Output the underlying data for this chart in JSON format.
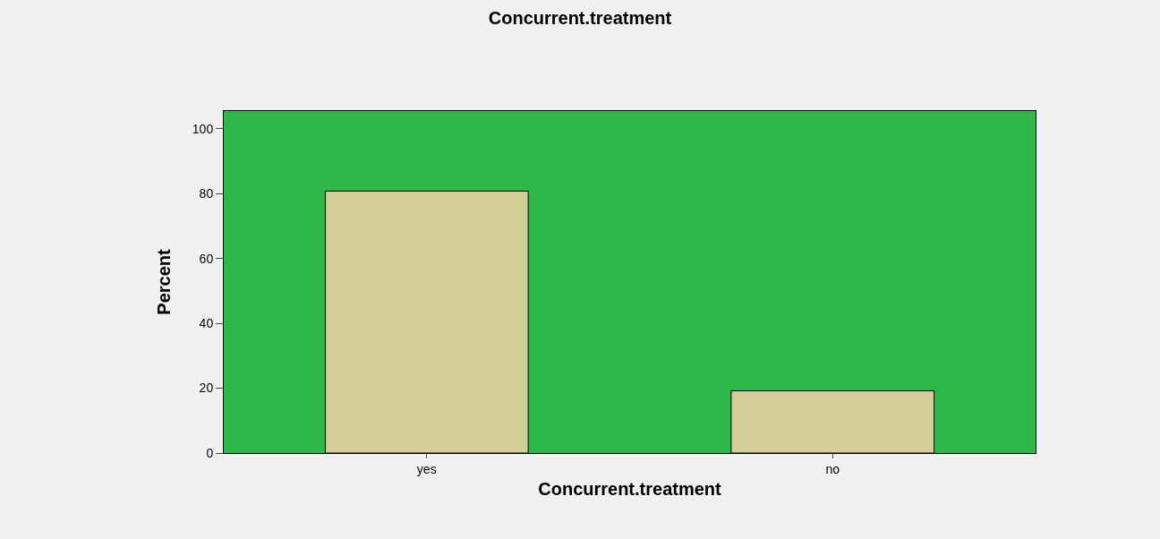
{
  "chart_data": {
    "type": "bar",
    "title": "Concurrent.treatment",
    "xlabel": "Concurrent.treatment",
    "ylabel": "Percent",
    "categories": [
      "yes",
      "no"
    ],
    "values": [
      80.8,
      19.2
    ],
    "color": "#d3cd98",
    "ylim": [
      0,
      105.5
    ],
    "yticks": [
      0,
      20,
      40,
      60,
      80,
      100
    ],
    "grid": false
  }
}
